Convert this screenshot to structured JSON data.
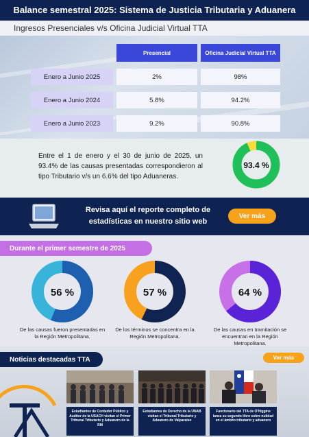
{
  "header": {
    "title": "Balance semestral 2025: Sistema de Justicia Tributaria y Aduanera"
  },
  "subtitle": "Ingresos Presenciales v/s Oficina Judicial Virtual TTA",
  "table": {
    "columns": [
      "Presencial",
      "Oficina Judicial Virtual TTA"
    ],
    "rows": [
      {
        "label": "Enero a Junio 2025",
        "presencial": "2%",
        "virtual": "98%"
      },
      {
        "label": "Enero a Junio 2024",
        "presencial": "5.8%",
        "virtual": "94.2%"
      },
      {
        "label": "Enero a Junio 2023",
        "presencial": "9.2%",
        "virtual": "90.8%"
      }
    ]
  },
  "summary": {
    "text": "Entre el 1 de enero y el 30 de junio de 2025, un 93.4% de las causas presentadas correspondieron al tipo Tributario v/s un 6.6% del tipo Aduaneras.",
    "donut_label": "93.4 %",
    "donut_value": 93.4,
    "colors": {
      "main": "#1fc05a",
      "rest": "#f5dc3c"
    }
  },
  "banner": {
    "text": "Revisa aquí el reporte completo de estadísticas en nuestro sitio web",
    "button": "Ver más"
  },
  "semester": {
    "title": "Durante el primer semestre de 2025",
    "stats": [
      {
        "label": "56 %",
        "value": 56,
        "color": "#1e5fb0",
        "rest": "#38b3d9",
        "caption": "De las causas fueron presentadas en la Región Metropolitana."
      },
      {
        "label": "57 %",
        "value": 57,
        "color": "#102454",
        "rest": "#f8a11e",
        "caption": "De los términos se concentra en la Región Metropolitana."
      },
      {
        "label": "64 %",
        "value": 64,
        "color": "#5b23d8",
        "rest": "#c870e8",
        "caption": "De las causas en tramitación se encuentran en la Región Metropolitana."
      }
    ]
  },
  "news": {
    "title": "Noticias destacadas TTA",
    "button": "Ver más",
    "items": [
      {
        "caption": "Estudiantes de Contador Público y Auditor de la USACH visitan el Primer Tribunal Tributario y Aduanero de la RM"
      },
      {
        "caption": "Estudiantes de Derecho de la UNAB visitan el Tribunal Tributario y Aduanero de Valparaíso"
      },
      {
        "caption": "Funcionario del TTA de O'Higgins lanza su segundo libro sobre nulidad en el ámbito tributario y aduanero"
      }
    ]
  }
}
